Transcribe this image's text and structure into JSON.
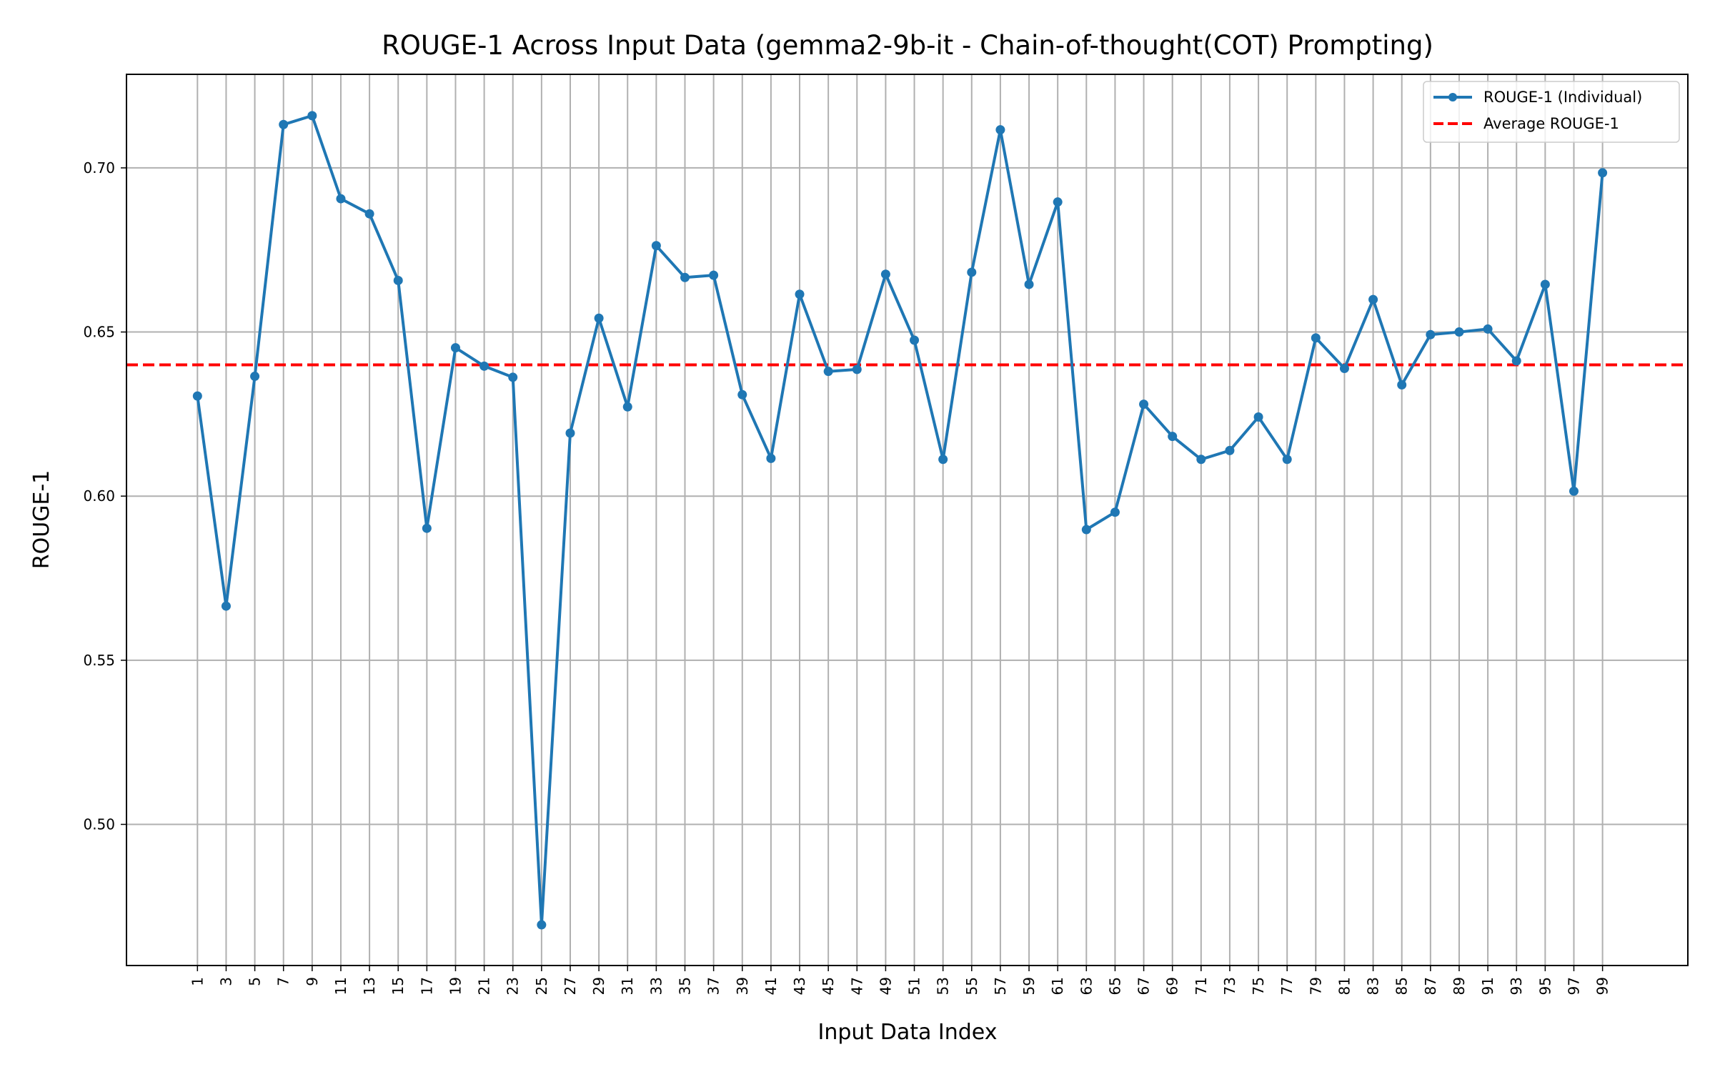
{
  "chart_data": {
    "type": "line",
    "title": "ROUGE-1 Across Input Data (gemma2-9b-it - Chain-of-thought(COT) Prompting)",
    "xlabel": "Input Data Index",
    "ylabel": "ROUGE-1",
    "x": [
      1,
      3,
      5,
      7,
      9,
      11,
      13,
      15,
      17,
      19,
      21,
      23,
      25,
      27,
      29,
      31,
      33,
      35,
      37,
      39,
      41,
      43,
      45,
      47,
      49,
      51,
      53,
      55,
      57,
      59,
      61,
      63,
      65,
      67,
      69,
      71,
      73,
      75,
      77,
      79,
      81,
      83,
      85,
      87,
      89,
      91,
      93,
      95,
      97,
      99
    ],
    "xlim": [
      -3.95,
      104.95
    ],
    "ylim": [
      0.457,
      0.7285
    ],
    "x_ticks": [
      1,
      3,
      5,
      7,
      9,
      11,
      13,
      15,
      17,
      19,
      21,
      23,
      25,
      27,
      29,
      31,
      33,
      35,
      37,
      39,
      41,
      43,
      45,
      47,
      49,
      51,
      53,
      55,
      57,
      59,
      61,
      63,
      65,
      67,
      69,
      71,
      73,
      75,
      77,
      79,
      81,
      83,
      85,
      87,
      89,
      91,
      93,
      95,
      97,
      99
    ],
    "y_ticks": [
      0.5,
      0.55,
      0.6,
      0.65,
      0.7
    ],
    "y_tick_labels": [
      "0.50",
      "0.55",
      "0.60",
      "0.65",
      "0.70"
    ],
    "grid": true,
    "legend_position": "top-right",
    "series": [
      {
        "name": "ROUGE-1 (Individual)",
        "color": "#1f77b4",
        "style": "solid-with-markers",
        "values": [
          0.6305,
          0.5665,
          0.6365,
          0.7132,
          0.7159,
          0.6906,
          0.686,
          0.6657,
          0.5902,
          0.6452,
          0.6396,
          0.6362,
          0.4694,
          0.6192,
          0.6542,
          0.6272,
          0.6763,
          0.6666,
          0.6673,
          0.6309,
          0.6115,
          0.6615,
          0.638,
          0.6386,
          0.6676,
          0.6475,
          0.6112,
          0.6682,
          0.7116,
          0.6645,
          0.6896,
          0.5898,
          0.5951,
          0.628,
          0.6182,
          0.6112,
          0.6139,
          0.6241,
          0.6112,
          0.6482,
          0.6389,
          0.6599,
          0.6339,
          0.6492,
          0.65,
          0.6509,
          0.6412,
          0.6645,
          0.6015,
          0.6985
        ]
      },
      {
        "name": "Average ROUGE-1",
        "color": "#ff0000",
        "style": "dashed",
        "value": 0.64
      }
    ]
  }
}
